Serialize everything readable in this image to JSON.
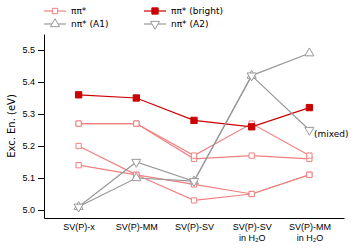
{
  "chart_data": {
    "type": "line",
    "categories": [
      "SV(P)-x",
      "SV(P)-MM",
      "SV(P)-SV",
      "SV(P)-SV\nin H₂O",
      "SV(P)-MM\nin H₂O"
    ],
    "series": [
      {
        "name": "ππ*",
        "color": "#f08080",
        "marker": "square-open",
        "values": [
          5.14,
          5.11,
          5.03,
          5.05,
          5.11
        ]
      },
      {
        "color": "#f08080",
        "marker": "square-open",
        "values": [
          5.2,
          5.11,
          5.08,
          5.05,
          5.11
        ]
      },
      {
        "color": "#f08080",
        "marker": "square-open",
        "values": [
          5.27,
          5.27,
          5.16,
          5.17,
          5.16
        ]
      },
      {
        "color": "#f08080",
        "marker": "square-open",
        "values": [
          5.27,
          5.27,
          5.17,
          5.27,
          5.17
        ]
      },
      {
        "name": "ππ* (bright)",
        "color": "#cc0000",
        "marker": "square",
        "values": [
          5.36,
          5.35,
          5.28,
          5.26,
          5.32
        ]
      },
      {
        "name": "nπ* (A1)",
        "color": "#999999",
        "marker": "triangle-up-open",
        "values": [
          5.01,
          5.1,
          5.09,
          5.42,
          5.49
        ]
      },
      {
        "name": "nπ* (A2)",
        "color": "#999999",
        "marker": "triangle-down-open",
        "values": [
          5.01,
          5.15,
          5.09,
          5.42,
          5.25
        ]
      }
    ],
    "y_label": "Exc. En. (eV)",
    "ylim": [
      4.975,
      5.55
    ],
    "yticks": [
      {
        "value": 5.0,
        "label": "5.0"
      },
      5.1,
      5.2,
      5.3,
      5.4,
      5.5
    ],
    "annotations": [
      {
        "text": "(mixed)",
        "x": 4.08,
        "y": 5.235
      }
    ],
    "legend": "upper left",
    "grid": false
  }
}
